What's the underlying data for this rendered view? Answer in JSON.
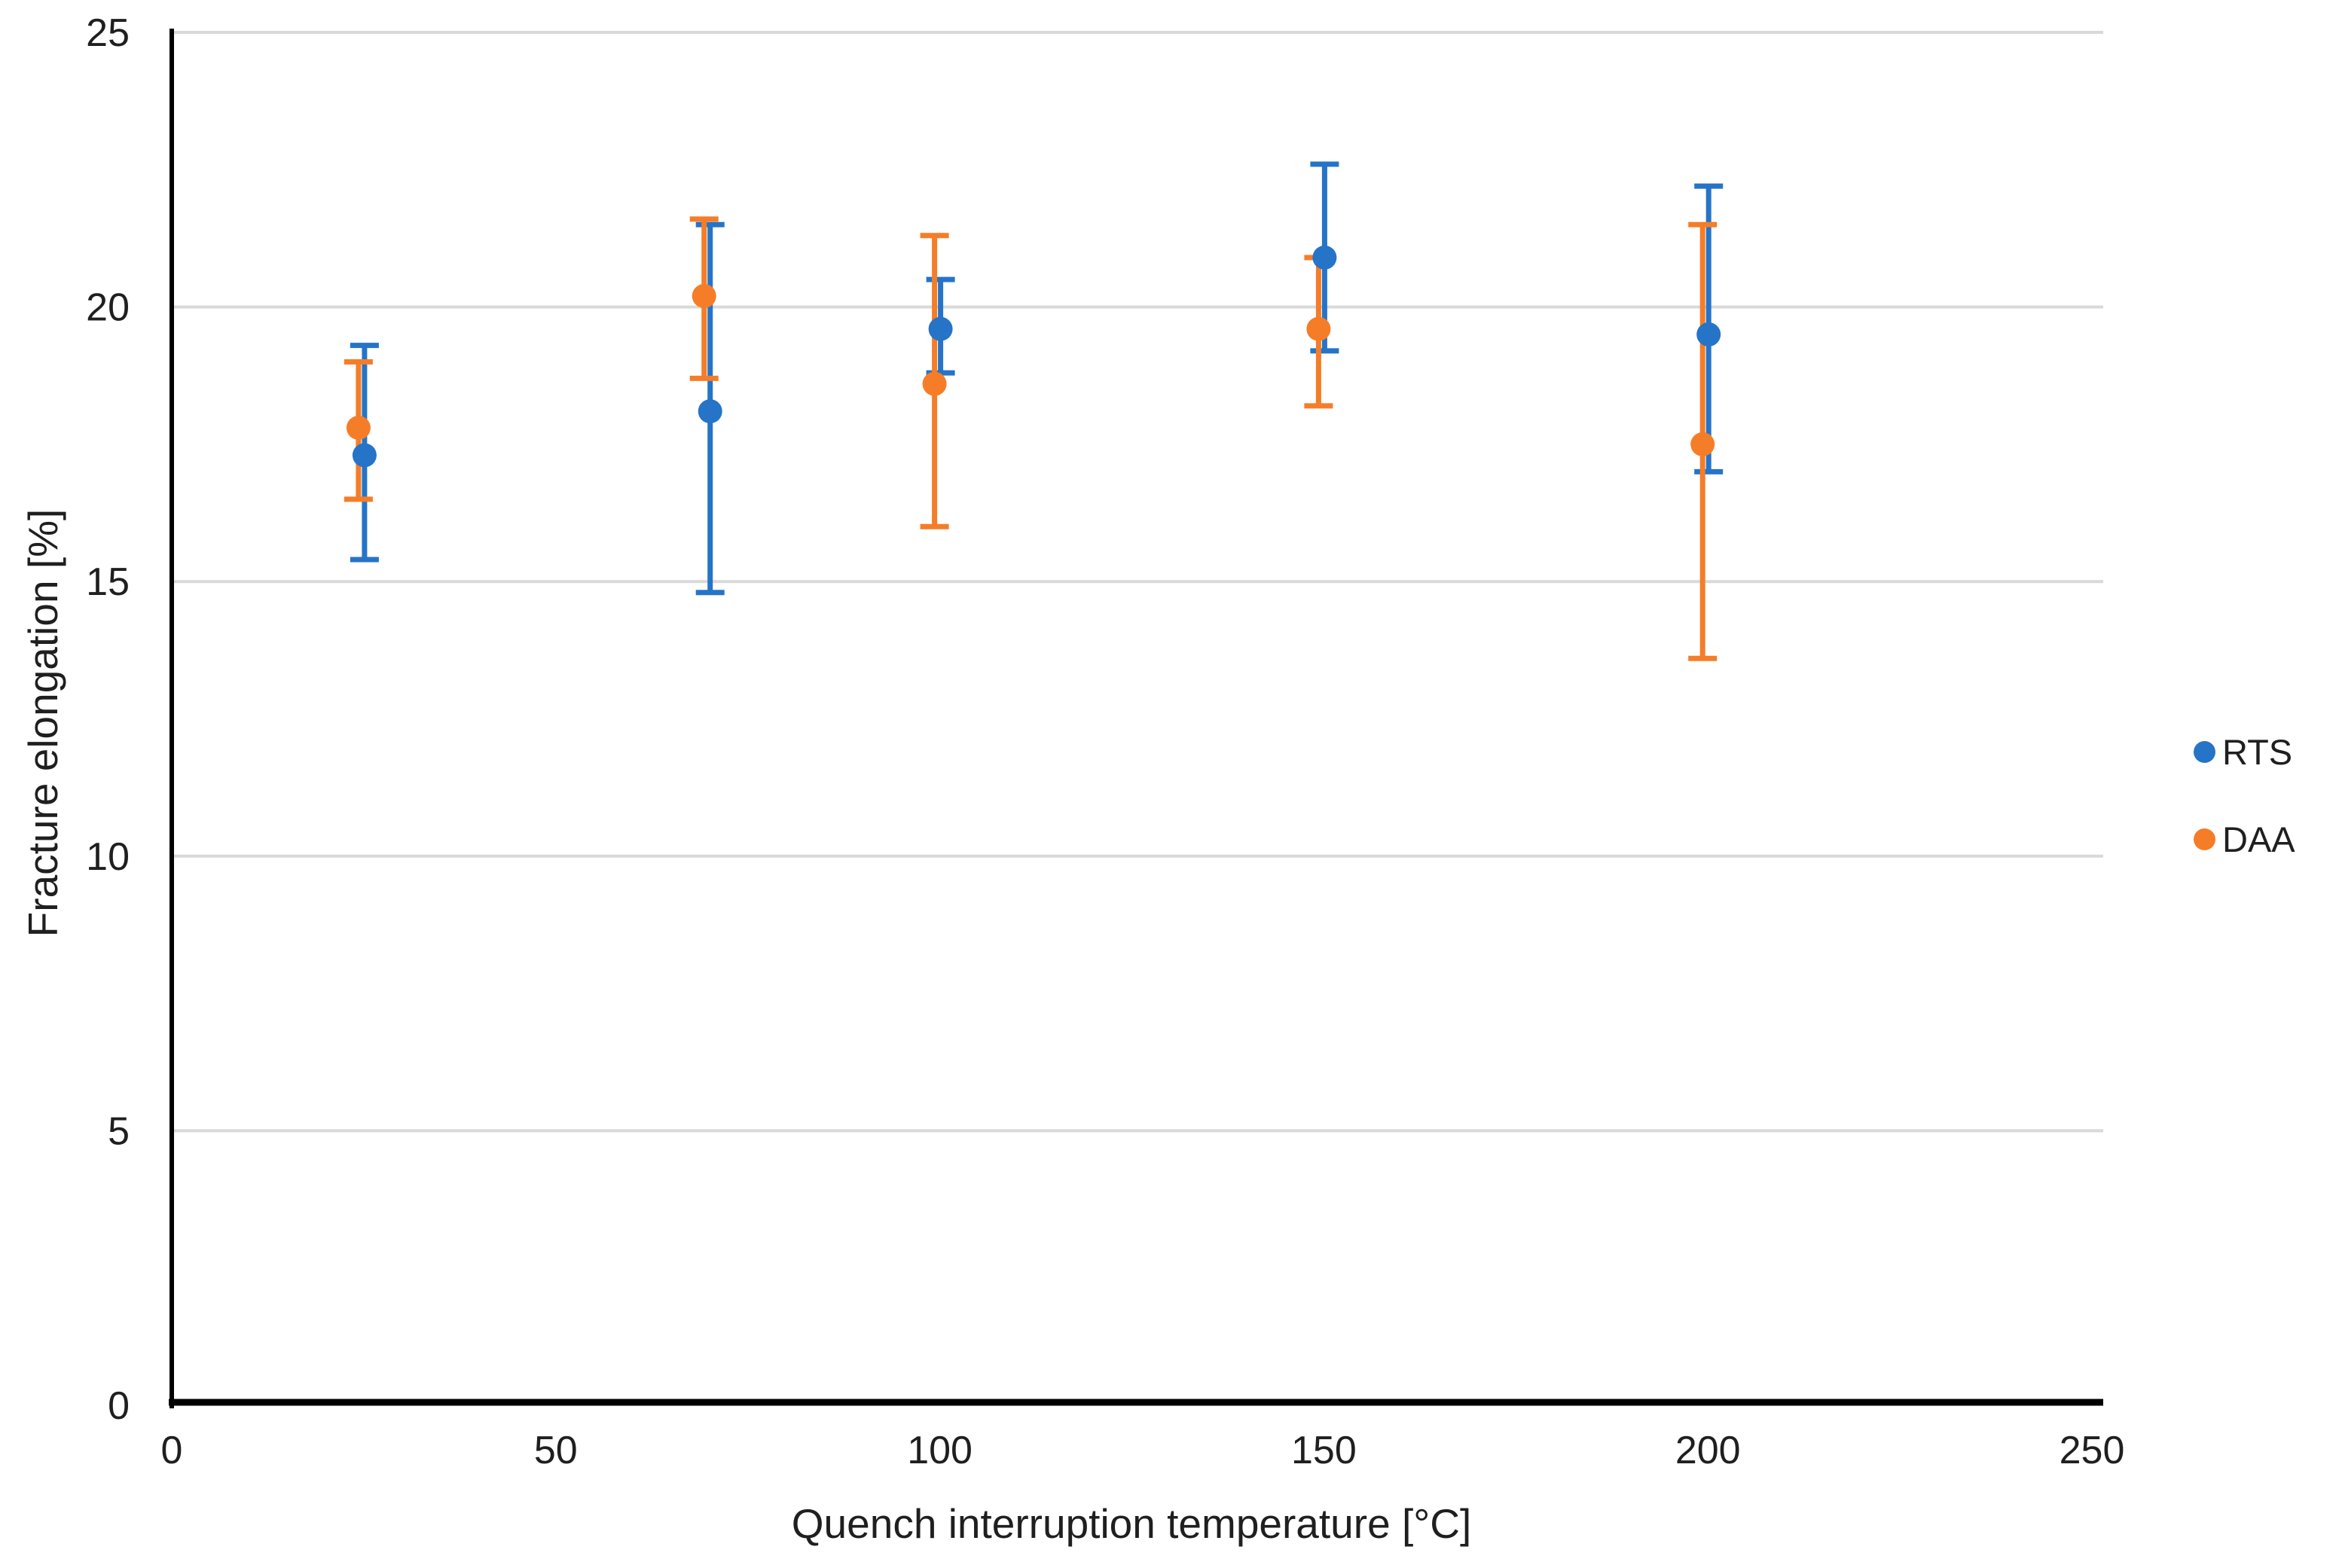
{
  "chart_data": {
    "type": "scatter",
    "title": "",
    "xlabel": "Quench interruption temperature [°C]",
    "ylabel": "Fracture elongation [%]",
    "xlim": [
      0,
      250
    ],
    "ylim": [
      0,
      25
    ],
    "x_ticks": [
      0,
      50,
      100,
      150,
      200,
      250
    ],
    "y_ticks": [
      0,
      5,
      10,
      15,
      20,
      25
    ],
    "grid": "horizontal-only",
    "gridline_color": "#d9d9d9",
    "axis_color": "#000000",
    "legend_position": "right",
    "error_bars": true,
    "series": [
      {
        "name": "RTS",
        "color": "#2574c7",
        "x": [
          25,
          70,
          100,
          150,
          200
        ],
        "y": [
          17.3,
          18.1,
          19.6,
          20.9,
          19.5
        ],
        "err_low": [
          15.4,
          14.8,
          18.8,
          19.2,
          17.0
        ],
        "err_high": [
          19.3,
          21.5,
          20.5,
          22.6,
          22.2
        ]
      },
      {
        "name": "DAA",
        "color": "#f57d28",
        "x": [
          25,
          70,
          100,
          150,
          200
        ],
        "y": [
          17.8,
          20.2,
          18.6,
          19.6,
          17.5
        ],
        "err_low": [
          16.5,
          18.7,
          16.0,
          18.2,
          13.6
        ],
        "err_high": [
          19.0,
          21.6,
          21.3,
          20.9,
          21.5
        ]
      }
    ]
  }
}
